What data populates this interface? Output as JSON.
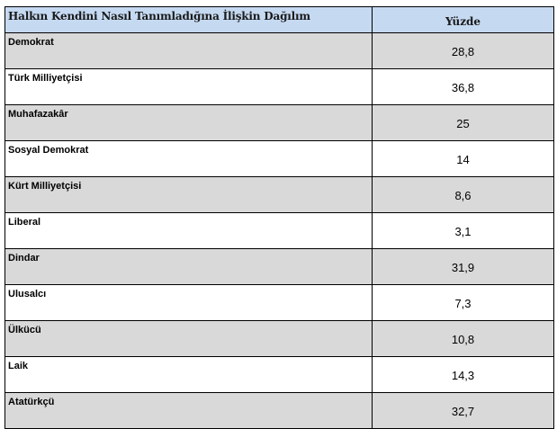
{
  "table": {
    "header": {
      "category": "Halkın Kendini Nasıl Tanımladığına İlişkin Dağılım",
      "value": "Yüzde"
    },
    "rows": [
      {
        "label": "Demokrat",
        "value": "28,8"
      },
      {
        "label": "Türk Milliyetçisi",
        "value": "36,8"
      },
      {
        "label": "Muhafazakâr",
        "value": "25"
      },
      {
        "label": "Sosyal Demokrat",
        "value": "14"
      },
      {
        "label": "Kürt Milliyetçisi",
        "value": "8,6"
      },
      {
        "label": "Liberal",
        "value": "3,1"
      },
      {
        "label": "Dindar",
        "value": "31,9"
      },
      {
        "label": "Ulusalcı",
        "value": "7,3"
      },
      {
        "label": "Ülkücü",
        "value": "10,8"
      },
      {
        "label": "Laik",
        "value": "14,3"
      },
      {
        "label": "Atatürkçü",
        "value": "32,7"
      }
    ]
  },
  "colors": {
    "header_background": "#c5d9f1",
    "shaded_row": "#d9d9d9",
    "plain_row": "#ffffff",
    "border": "#000000"
  }
}
